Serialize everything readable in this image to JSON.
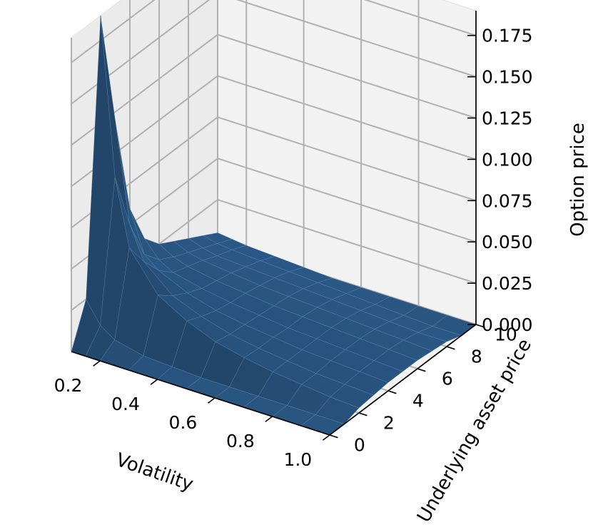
{
  "chart_data": {
    "type": "surface",
    "surface_color": "#2b5988",
    "pane_color": "#f2f2f2",
    "grid_color": "#b0b0b0",
    "x_axis": {
      "label": "Volatility",
      "ticks": [
        0.2,
        0.4,
        0.6,
        0.8,
        1.0
      ],
      "tick_labels": [
        "0.2",
        "0.4",
        "0.6",
        "0.8",
        "1.0"
      ],
      "range": [
        0.1,
        1.0
      ]
    },
    "y_axis": {
      "label": "Underlying asset price",
      "ticks": [
        0,
        2,
        4,
        6,
        8,
        10
      ],
      "tick_labels": [
        "0",
        "2",
        "4",
        "6",
        "8",
        "10"
      ],
      "range": [
        0,
        10
      ]
    },
    "z_axis": {
      "label": "Option price",
      "ticks": [
        0.0,
        0.025,
        0.05,
        0.075,
        0.1,
        0.125,
        0.15,
        0.175
      ],
      "tick_labels": [
        "0.000",
        "0.025",
        "0.050",
        "0.075",
        "0.100",
        "0.125",
        "0.150",
        "0.175"
      ],
      "range": [
        0,
        0.19
      ]
    },
    "x": [
      0.1,
      0.15,
      0.2,
      0.3,
      0.4,
      0.5,
      0.6,
      0.7,
      0.8,
      0.9,
      1.0
    ],
    "y": [
      0,
      1,
      2,
      3,
      4,
      5,
      6,
      7,
      8,
      9,
      10
    ],
    "z": [
      [
        0.0,
        0.0,
        0.0,
        0.0,
        0.0,
        0.0,
        0.0,
        0.0,
        0.0,
        0.0,
        0.0
      ],
      [
        0.025,
        0.012,
        0.006,
        0.002,
        0.001,
        0.0,
        0.0,
        0.0,
        0.0,
        0.0,
        0.0
      ],
      [
        0.19,
        0.095,
        0.055,
        0.032,
        0.022,
        0.015,
        0.011,
        0.008,
        0.006,
        0.004,
        0.003
      ],
      [
        0.12,
        0.06,
        0.04,
        0.025,
        0.018,
        0.013,
        0.01,
        0.008,
        0.006,
        0.005,
        0.004
      ],
      [
        0.06,
        0.035,
        0.028,
        0.02,
        0.015,
        0.012,
        0.01,
        0.008,
        0.007,
        0.006,
        0.005
      ],
      [
        0.035,
        0.025,
        0.02,
        0.016,
        0.013,
        0.011,
        0.009,
        0.008,
        0.007,
        0.006,
        0.005
      ],
      [
        0.025,
        0.02,
        0.017,
        0.014,
        0.012,
        0.01,
        0.009,
        0.008,
        0.007,
        0.006,
        0.005
      ],
      [
        0.02,
        0.016,
        0.014,
        0.012,
        0.01,
        0.009,
        0.008,
        0.007,
        0.006,
        0.005,
        0.004
      ],
      [
        0.015,
        0.012,
        0.01,
        0.009,
        0.008,
        0.007,
        0.006,
        0.005,
        0.004,
        0.003,
        0.003
      ],
      [
        0.01,
        0.008,
        0.007,
        0.006,
        0.005,
        0.004,
        0.003,
        0.002,
        0.001,
        0.0,
        0.0
      ],
      [
        0.005,
        0.004,
        0.003,
        0.002,
        0.001,
        0.0,
        0.0,
        0.0,
        0.0,
        0.0,
        0.0
      ]
    ]
  }
}
